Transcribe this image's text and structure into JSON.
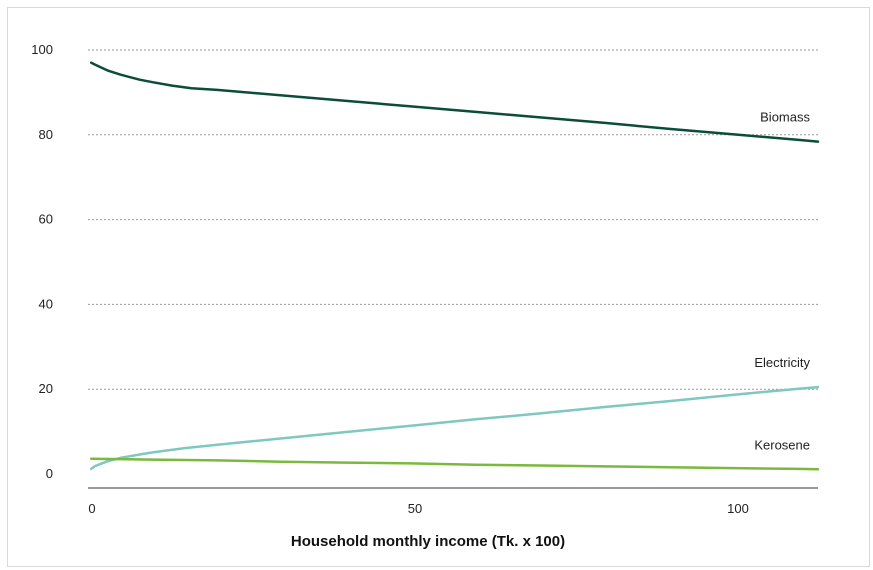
{
  "chart_data": {
    "type": "line",
    "title": "",
    "xlabel": "Household monthly income (Tk. x 100)",
    "ylabel": "",
    "xlim": [
      0,
      113
    ],
    "ylim": [
      0,
      100
    ],
    "x_ticks": [
      0,
      50,
      100
    ],
    "y_ticks": [
      0,
      20,
      40,
      60,
      80,
      100
    ],
    "grid": "horizontal dotted",
    "series": [
      {
        "name": "Biomass",
        "color": "#0b4d3a",
        "x": [
          0.5,
          1,
          2,
          3,
          5,
          8,
          10,
          13,
          16,
          20,
          30,
          40,
          50,
          60,
          70,
          80,
          90,
          100,
          110,
          113
        ],
        "y": [
          97,
          96.6,
          95.9,
          95.2,
          94.2,
          93,
          92.4,
          91.6,
          91,
          90.6,
          89.3,
          88,
          86.7,
          85.4,
          84.1,
          82.8,
          81.4,
          80.1,
          78.8,
          78.4
        ]
      },
      {
        "name": "Electricity",
        "color": "#7fc8c0",
        "x": [
          0.5,
          1,
          2,
          3,
          5,
          8,
          10,
          15,
          20,
          30,
          40,
          50,
          60,
          70,
          80,
          90,
          100,
          110,
          113
        ],
        "y": [
          1.2,
          1.8,
          2.4,
          3.0,
          3.8,
          4.6,
          5.1,
          6.1,
          6.9,
          8.4,
          9.9,
          11.4,
          12.9,
          14.3,
          15.8,
          17.2,
          18.7,
          20.1,
          20.5
        ]
      },
      {
        "name": "Kerosene",
        "color": "#7ab83e",
        "x": [
          0.5,
          10,
          20,
          30,
          40,
          50,
          60,
          70,
          80,
          90,
          100,
          110,
          113
        ],
        "y": [
          3.6,
          3.4,
          3.2,
          2.9,
          2.7,
          2.5,
          2.2,
          2.0,
          1.8,
          1.6,
          1.4,
          1.2,
          1.1
        ]
      }
    ]
  }
}
